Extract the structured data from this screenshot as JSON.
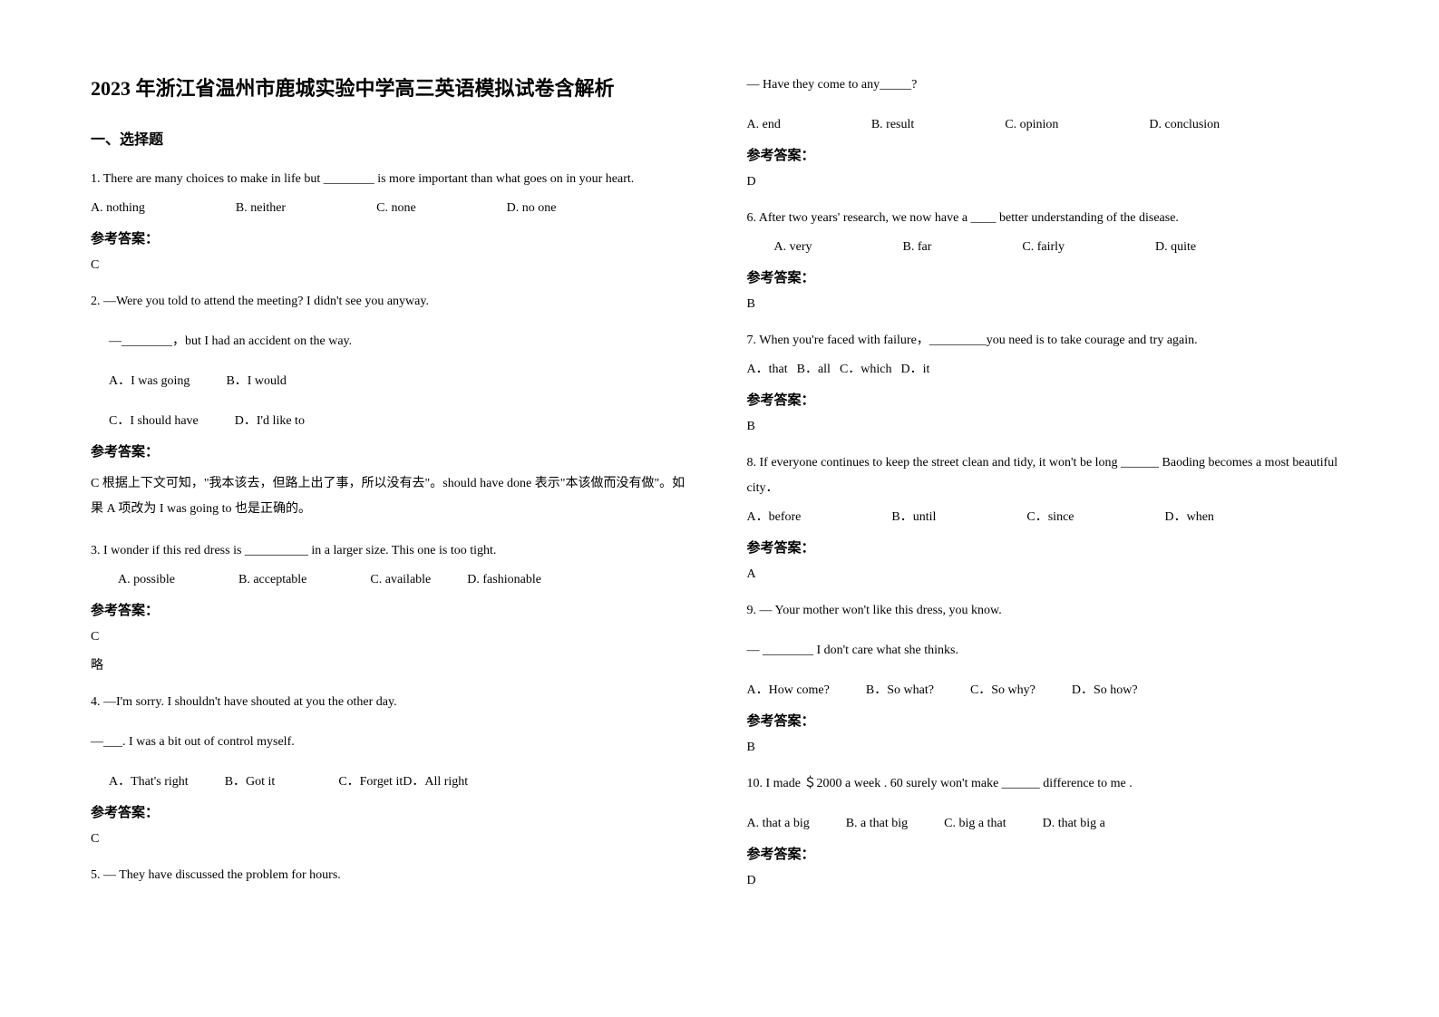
{
  "title": "2023 年浙江省温州市鹿城实验中学高三英语模拟试卷含解析",
  "section1": "一、选择题",
  "answer_label": "参考答案：",
  "q1": {
    "text": "1. There are many choices to make in life but ________ is more important than what goes on in your heart.",
    "opts": [
      "A. nothing",
      "B. neither",
      "C. none",
      "D. no one"
    ],
    "answer": "C"
  },
  "q2": {
    "line1": "2. —Were you told to attend the meeting? I didn't see you anyway.",
    "line2": "—________，but I had an accident on the way.",
    "opts1": [
      "A．I was going",
      "B．I would"
    ],
    "opts2": [
      "C．I should have",
      "D．I'd like to"
    ],
    "answer": "C   根据上下文可知，\"我本该去，但路上出了事，所以没有去\"。should have done 表示\"本该做而没有做\"。如果 A 项改为 I was going to 也是正确的。"
  },
  "q3": {
    "text": "3. I wonder if this red dress is __________ in a larger size. This one is too tight.",
    "opts": [
      "A. possible",
      "B. acceptable",
      "C. available",
      "D. fashionable"
    ],
    "answer": "C",
    "note": "略"
  },
  "q4": {
    "line1": "4. —I'm sorry. I shouldn't have shouted at you the other day.",
    "line2": "—___. I was a bit out of control myself.",
    "opts": [
      "A．That's right",
      "B．Got it",
      "C．Forget it",
      "D．All right"
    ],
    "answer": "C"
  },
  "q5": {
    "line1": "5. — They have discussed the problem for hours.",
    "line2": "— Have they come to any_____?",
    "opts": [
      "A. end",
      "B. result",
      "C. opinion",
      "D. conclusion"
    ],
    "answer": "D"
  },
  "q6": {
    "text": "6.  After two years' research, we now have a ____ better understanding of the disease.",
    "opts": [
      "A. very",
      "B. far",
      "C. fairly",
      "D. quite"
    ],
    "answer": "B"
  },
  "q7": {
    "text": "7. When you're faced with failure，_________you need is to take courage and try again.",
    "opts": [
      "A．that",
      "B．all",
      "C．which",
      "D．it"
    ],
    "answer": "B"
  },
  "q8": {
    "text": "8. If everyone continues to keep the street clean and tidy, it won't be long ______ Baoding becomes a most beautiful city．",
    "opts": [
      "A．before",
      "B．until",
      "C．since",
      "D．when"
    ],
    "answer": "A"
  },
  "q9": {
    "line1": "9. — Your mother won't like this dress, you know.",
    "line2": "— ________ I don't care what she thinks.",
    "opts": [
      "A．How come?",
      "B．So what?",
      "C．So why?",
      "D．So how?"
    ],
    "answer": "B"
  },
  "q10": {
    "text": "10. I made ＄2000 a week . 60 surely won't make ______ difference to me .",
    "opts": [
      "A. that a big",
      "B. a that big",
      "C. big a that",
      "D. that big a"
    ],
    "answer": "D"
  }
}
